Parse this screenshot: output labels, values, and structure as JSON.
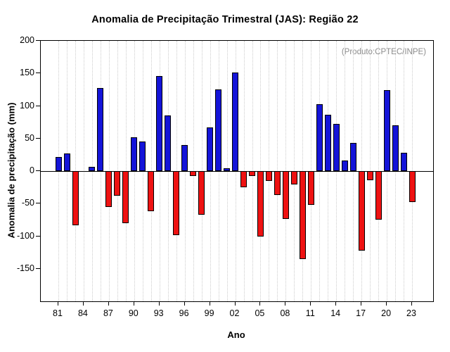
{
  "chart_data": {
    "type": "bar",
    "title": "Anomalia de Precipitação Trimestral (JAS): Região 22",
    "annotation": "(Produto:CPTEC/INPE)",
    "xlabel": "Ano",
    "ylabel": "Anomalia de precipitação (mm)",
    "ylim": [
      -200,
      200
    ],
    "yticks": [
      200,
      150,
      100,
      50,
      0,
      -50,
      -100,
      -150
    ],
    "grid": "vertical-dotted",
    "legend": "none",
    "colors": {
      "positive": "#1414d8",
      "negative": "#ee1212",
      "axis": "#000000",
      "grid": "#cccccc",
      "annotation": "#8c8c8c"
    },
    "years": [
      1981,
      1982,
      1983,
      1984,
      1985,
      1986,
      1987,
      1988,
      1989,
      1990,
      1991,
      1992,
      1993,
      1994,
      1995,
      1996,
      1997,
      1998,
      1999,
      2000,
      2001,
      2002,
      2003,
      2004,
      2005,
      2006,
      2007,
      2008,
      2009,
      2010,
      2011,
      2012,
      2013,
      2014,
      2015,
      2016,
      2017,
      2018,
      2019,
      2020,
      2021,
      2022,
      2023
    ],
    "values": [
      22,
      27,
      -83,
      0,
      6,
      128,
      -55,
      -38,
      -80,
      52,
      46,
      -62,
      146,
      85,
      -98,
      40,
      -7,
      -67,
      67,
      125,
      4,
      151,
      -25,
      -8,
      -100,
      -15,
      -37,
      -73,
      -20,
      -135,
      -52,
      103,
      87,
      73,
      16,
      43,
      -122,
      -14,
      -75,
      124,
      70,
      28,
      -48
    ],
    "xticks": [
      {
        "year": 1981,
        "label": "81"
      },
      {
        "year": 1984,
        "label": "84"
      },
      {
        "year": 1987,
        "label": "87"
      },
      {
        "year": 1990,
        "label": "90"
      },
      {
        "year": 1993,
        "label": "93"
      },
      {
        "year": 1996,
        "label": "96"
      },
      {
        "year": 1999,
        "label": "99"
      },
      {
        "year": 2002,
        "label": "02"
      },
      {
        "year": 2005,
        "label": "05"
      },
      {
        "year": 2008,
        "label": "08"
      },
      {
        "year": 2011,
        "label": "11"
      },
      {
        "year": 2014,
        "label": "14"
      },
      {
        "year": 2017,
        "label": "17"
      },
      {
        "year": 2020,
        "label": "20"
      },
      {
        "year": 2023,
        "label": "23"
      }
    ]
  }
}
